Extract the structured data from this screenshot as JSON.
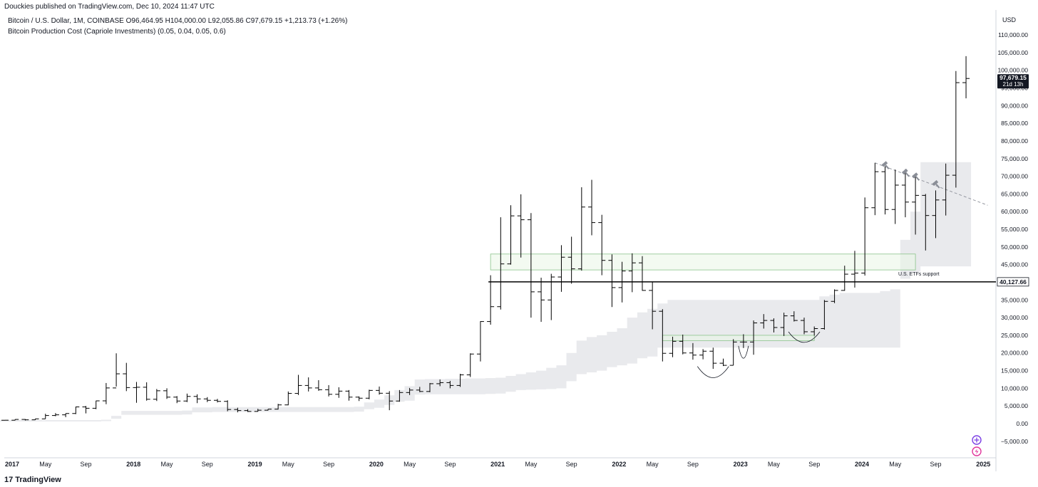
{
  "header": {
    "published": "Douckies published on TradingView.com, Dec 10, 2024 11:47 UTC"
  },
  "legend": {
    "symbol_line": "Bitcoin / U.S. Dollar, 1M, COINBASE  O96,464.95  H104,000.00  L92,055.86  C97,679.15  +1,213.73 (+1.26%)",
    "indicator_line": "Bitcoin Production Cost (Capriole Investments) (0.05, 0.04, 0.05, 0.6)"
  },
  "price_scale": {
    "currency": "USD",
    "ticks": [
      "110,000.00",
      "105,000.00",
      "100,000.00",
      "95,000.00",
      "90,000.00",
      "85,000.00",
      "80,000.00",
      "75,000.00",
      "70,000.00",
      "65,000.00",
      "60,000.00",
      "55,000.00",
      "50,000.00",
      "45,000.00",
      "35,000.00",
      "30,000.00",
      "25,000.00",
      "20,000.00",
      "15,000.00",
      "10,000.00",
      "5,000.00",
      "0.00",
      "−5,000.00"
    ],
    "tick_values": [
      110000,
      105000,
      100000,
      95000,
      90000,
      85000,
      80000,
      75000,
      70000,
      65000,
      60000,
      55000,
      50000,
      45000,
      35000,
      30000,
      25000,
      20000,
      15000,
      10000,
      5000,
      0,
      -5000
    ],
    "last_price_label": "97,679.15",
    "countdown_label": "21d 13h",
    "level_label": "40,127.66"
  },
  "time_scale": {
    "ticks": [
      "2017",
      "May",
      "Sep",
      "2018",
      "May",
      "Sep",
      "2019",
      "May",
      "Sep",
      "2020",
      "May",
      "Sep",
      "2021",
      "May",
      "Sep",
      "2022",
      "May",
      "Sep",
      "2023",
      "May",
      "Sep",
      "2024",
      "May",
      "Sep",
      "2025"
    ],
    "bold": [
      "2017",
      "2018",
      "2019",
      "2020",
      "2021",
      "2022",
      "2023",
      "2024",
      "2025"
    ]
  },
  "annotations": {
    "etf_zone_label": "U.S. ETFs support"
  },
  "footer": {
    "logo": "17",
    "brand": "TradingView"
  },
  "colors": {
    "bar": "#000000",
    "band": "#e9eaed",
    "zone_fill": "#eaf5e6",
    "zone_border": "#8bc48a",
    "grid": "#f3f3f3",
    "trendline": "#9598a1",
    "level_line": "#000000"
  },
  "chart_data": {
    "type": "ohlc",
    "title": "Bitcoin / U.S. Dollar, 1M, COINBASE",
    "timeframe": "1M",
    "start_month": "2017-01",
    "ylim": [
      -7000,
      114000
    ],
    "ohlc": [
      [
        960,
        1000,
        900,
        970
      ],
      [
        970,
        1200,
        930,
        1190
      ],
      [
        1190,
        1300,
        890,
        1080
      ],
      [
        1080,
        1380,
        1070,
        1350
      ],
      [
        1350,
        2800,
        1360,
        2300
      ],
      [
        2300,
        3000,
        2100,
        2490
      ],
      [
        2490,
        2900,
        1830,
        2870
      ],
      [
        2870,
        4800,
        2700,
        4730
      ],
      [
        4730,
        5000,
        2900,
        4350
      ],
      [
        4350,
        6500,
        4100,
        6450
      ],
      [
        6450,
        11500,
        5500,
        10100
      ],
      [
        10100,
        19900,
        10500,
        14100
      ],
      [
        14100,
        17200,
        9200,
        10200
      ],
      [
        10200,
        11800,
        5900,
        10300
      ],
      [
        10300,
        11700,
        6500,
        6900
      ],
      [
        6900,
        9800,
        6400,
        9300
      ],
      [
        9300,
        10000,
        7000,
        7500
      ],
      [
        7500,
        7800,
        5800,
        6400
      ],
      [
        6400,
        8500,
        6100,
        7700
      ],
      [
        7700,
        8300,
        5800,
        7000
      ],
      [
        7000,
        7500,
        6100,
        6600
      ],
      [
        6600,
        7000,
        6000,
        6300
      ],
      [
        6300,
        6600,
        3500,
        4000
      ],
      [
        4000,
        4500,
        3200,
        3700
      ],
      [
        3700,
        4100,
        3300,
        3450
      ],
      [
        3450,
        4200,
        3400,
        3800
      ],
      [
        3800,
        4100,
        3700,
        4100
      ],
      [
        4100,
        5600,
        4000,
        5300
      ],
      [
        5300,
        9100,
        5200,
        8550
      ],
      [
        8550,
        13800,
        8100,
        10800
      ],
      [
        10800,
        13100,
        9100,
        10100
      ],
      [
        10100,
        12300,
        9300,
        9600
      ],
      [
        9600,
        10900,
        7700,
        8300
      ],
      [
        8300,
        10300,
        7300,
        9200
      ],
      [
        9200,
        9500,
        6500,
        7500
      ],
      [
        7500,
        7700,
        6400,
        7200
      ],
      [
        7200,
        9600,
        6900,
        9400
      ],
      [
        9400,
        10500,
        8200,
        8600
      ],
      [
        8600,
        9200,
        3800,
        6400
      ],
      [
        6400,
        9500,
        6200,
        8800
      ],
      [
        8800,
        10100,
        8100,
        9500
      ],
      [
        9500,
        10400,
        8900,
        9100
      ],
      [
        9100,
        11500,
        8900,
        11300
      ],
      [
        11300,
        12500,
        10600,
        11600
      ],
      [
        11600,
        12100,
        10000,
        10800
      ],
      [
        10800,
        14100,
        10400,
        13800
      ],
      [
        13800,
        19900,
        13200,
        19700
      ],
      [
        19700,
        29000,
        17600,
        28900
      ],
      [
        28900,
        42000,
        28000,
        33100
      ],
      [
        33100,
        58400,
        32300,
        45200
      ],
      [
        45200,
        61800,
        45000,
        58800
      ],
      [
        58800,
        64900,
        47000,
        57700
      ],
      [
        57700,
        59600,
        30000,
        37300
      ],
      [
        37300,
        41300,
        28800,
        35000
      ],
      [
        35000,
        42400,
        29300,
        41500
      ],
      [
        41500,
        50500,
        37300,
        47100
      ],
      [
        47100,
        52900,
        39600,
        43800
      ],
      [
        43800,
        66900,
        43300,
        61300
      ],
      [
        61300,
        69000,
        53300,
        56900
      ],
      [
        56900,
        59100,
        42000,
        46200
      ],
      [
        46200,
        47900,
        33000,
        38500
      ],
      [
        38500,
        45800,
        34300,
        43200
      ],
      [
        43200,
        48200,
        37200,
        45500
      ],
      [
        45500,
        47400,
        37600,
        37700
      ],
      [
        37700,
        40000,
        26700,
        31800
      ],
      [
        31800,
        32400,
        17600,
        19900
      ],
      [
        19900,
        24600,
        18800,
        23300
      ],
      [
        23300,
        25200,
        19600,
        20000
      ],
      [
        20000,
        22800,
        18100,
        19400
      ],
      [
        19400,
        21100,
        18200,
        20500
      ],
      [
        20500,
        21500,
        15500,
        17100
      ],
      [
        17100,
        18400,
        16300,
        16500
      ],
      [
        16500,
        23900,
        16500,
        23100
      ],
      [
        23100,
        25300,
        21400,
        23100
      ],
      [
        23100,
        29200,
        19500,
        28500
      ],
      [
        28500,
        31000,
        26900,
        29200
      ],
      [
        29200,
        29800,
        25800,
        27200
      ],
      [
        27200,
        31400,
        24800,
        30500
      ],
      [
        30500,
        31800,
        28900,
        29200
      ],
      [
        29200,
        30000,
        25300,
        26000
      ],
      [
        26000,
        27500,
        24900,
        26900
      ],
      [
        26900,
        35000,
        26600,
        34600
      ],
      [
        34600,
        38000,
        34100,
        37700
      ],
      [
        37700,
        44700,
        37600,
        42300
      ],
      [
        42300,
        48900,
        38500,
        42600
      ],
      [
        42600,
        64000,
        41900,
        61100
      ],
      [
        61100,
        73800,
        59000,
        71300
      ],
      [
        71300,
        72800,
        59200,
        60600
      ],
      [
        60600,
        71900,
        56500,
        67500
      ],
      [
        67500,
        72000,
        58400,
        62700
      ],
      [
        62700,
        70000,
        53500,
        64600
      ],
      [
        64600,
        65000,
        49000,
        58900
      ],
      [
        58900,
        66000,
        52500,
        63300
      ],
      [
        63300,
        73600,
        58900,
        70300
      ],
      [
        70300,
        99800,
        66800,
        96500
      ],
      [
        96500,
        104000,
        92055,
        97679
      ]
    ],
    "production_cost_band": [
      [
        600,
        1000
      ],
      [
        600,
        1000
      ],
      [
        600,
        1000
      ],
      [
        600,
        1000
      ],
      [
        600,
        1000
      ],
      [
        600,
        1000
      ],
      [
        600,
        1000
      ],
      [
        600,
        1000
      ],
      [
        600,
        1000
      ],
      [
        600,
        1000
      ],
      [
        700,
        1100
      ],
      [
        1400,
        2200
      ],
      [
        2500,
        3600
      ],
      [
        2500,
        3600
      ],
      [
        2500,
        3600
      ],
      [
        2500,
        3600
      ],
      [
        2500,
        3600
      ],
      [
        2500,
        3600
      ],
      [
        2600,
        3700
      ],
      [
        3200,
        4600
      ],
      [
        3200,
        4600
      ],
      [
        3300,
        4700
      ],
      [
        3300,
        4700
      ],
      [
        3300,
        4700
      ],
      [
        3300,
        4700
      ],
      [
        3300,
        4700
      ],
      [
        3300,
        4700
      ],
      [
        3300,
        4700
      ],
      [
        3300,
        4700
      ],
      [
        3300,
        4700
      ],
      [
        3300,
        4700
      ],
      [
        3300,
        4700
      ],
      [
        3300,
        4700
      ],
      [
        3300,
        4700
      ],
      [
        3300,
        4700
      ],
      [
        3400,
        4800
      ],
      [
        4100,
        6000
      ],
      [
        4500,
        6800
      ],
      [
        5300,
        8000
      ],
      [
        6200,
        9500
      ],
      [
        6500,
        10600
      ],
      [
        8200,
        12500
      ],
      [
        8300,
        12600
      ],
      [
        8300,
        12600
      ],
      [
        8300,
        12700
      ],
      [
        8300,
        12700
      ],
      [
        8300,
        12800
      ],
      [
        8300,
        12800
      ],
      [
        8400,
        12900
      ],
      [
        8500,
        13000
      ],
      [
        9000,
        13500
      ],
      [
        9500,
        14000
      ],
      [
        9600,
        14500
      ],
      [
        9700,
        15000
      ],
      [
        9800,
        15800
      ],
      [
        10000,
        16500
      ],
      [
        12000,
        20000
      ],
      [
        14000,
        23500
      ],
      [
        14500,
        24500
      ],
      [
        15000,
        25000
      ],
      [
        16000,
        26000
      ],
      [
        16500,
        27000
      ],
      [
        17000,
        30000
      ],
      [
        18500,
        31500
      ],
      [
        19000,
        32500
      ],
      [
        21500,
        34000
      ],
      [
        21500,
        35000
      ],
      [
        21500,
        35000
      ],
      [
        21500,
        35000
      ],
      [
        21500,
        35000
      ],
      [
        21500,
        35000
      ],
      [
        21500,
        35000
      ],
      [
        21500,
        35000
      ],
      [
        21500,
        35000
      ],
      [
        21500,
        35000
      ],
      [
        21500,
        35000
      ],
      [
        21500,
        35000
      ],
      [
        21500,
        35000
      ],
      [
        21500,
        35000
      ],
      [
        21500,
        35000
      ],
      [
        21500,
        35000
      ],
      [
        21500,
        36000
      ],
      [
        21500,
        36500
      ],
      [
        21500,
        37000
      ],
      [
        21500,
        37000
      ],
      [
        21500,
        37000
      ],
      [
        21500,
        37000
      ],
      [
        21500,
        37500
      ],
      [
        21500,
        38000
      ],
      [
        41000,
        52000
      ],
      [
        43000,
        60000
      ],
      [
        44500,
        74000
      ],
      [
        44500,
        74000
      ],
      [
        44500,
        74000
      ],
      [
        44500,
        74000
      ],
      [
        44500,
        74000
      ]
    ],
    "horizontal_level": 40127.66,
    "etf_support_zone": {
      "x_start": "2021-01",
      "x_end": "2024-07",
      "y_low": 43500,
      "y_high": 48000
    },
    "bear_support_zone": {
      "x_start": "2022-06",
      "x_end": "2023-09",
      "y_low": 23500,
      "y_high": 25000
    },
    "trendline": {
      "points": [
        [
          "2024-03",
          73800
        ],
        [
          "2025-02",
          61800
        ]
      ]
    },
    "markers_on_trendline": [
      "2024-04",
      "2024-06",
      "2024-07",
      "2024-09"
    ],
    "arc_markers": [
      {
        "center": "2022-11",
        "y_top": 16200,
        "y_bottom": 13000
      },
      {
        "center": "2023-02",
        "y_top": 22000,
        "y_bottom": 18500
      },
      {
        "center": "2023-08",
        "y_top": 26000,
        "y_bottom": 23000
      }
    ]
  }
}
